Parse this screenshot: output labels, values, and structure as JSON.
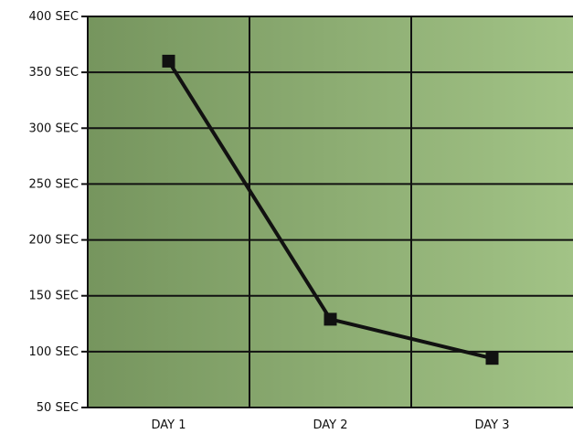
{
  "chart_data": {
    "type": "line",
    "title": "",
    "xlabel": "",
    "ylabel": "",
    "categories": [
      "DAY 1",
      "DAY 2",
      "DAY 3"
    ],
    "yticks": [
      "50 SEC",
      "100 SEC",
      "150 SEC",
      "200 SEC",
      "250 SEC",
      "300 SEC",
      "350 SEC",
      "400 SEC"
    ],
    "ylim": [
      50,
      400
    ],
    "series": [
      {
        "values": [
          360,
          129,
          94
        ]
      }
    ],
    "grid": true,
    "colors": {
      "plot_gradient_start": "#76955e",
      "plot_gradient_end": "#a2c386",
      "grid": "#111111",
      "line": "#111111",
      "marker": "#111111"
    }
  }
}
